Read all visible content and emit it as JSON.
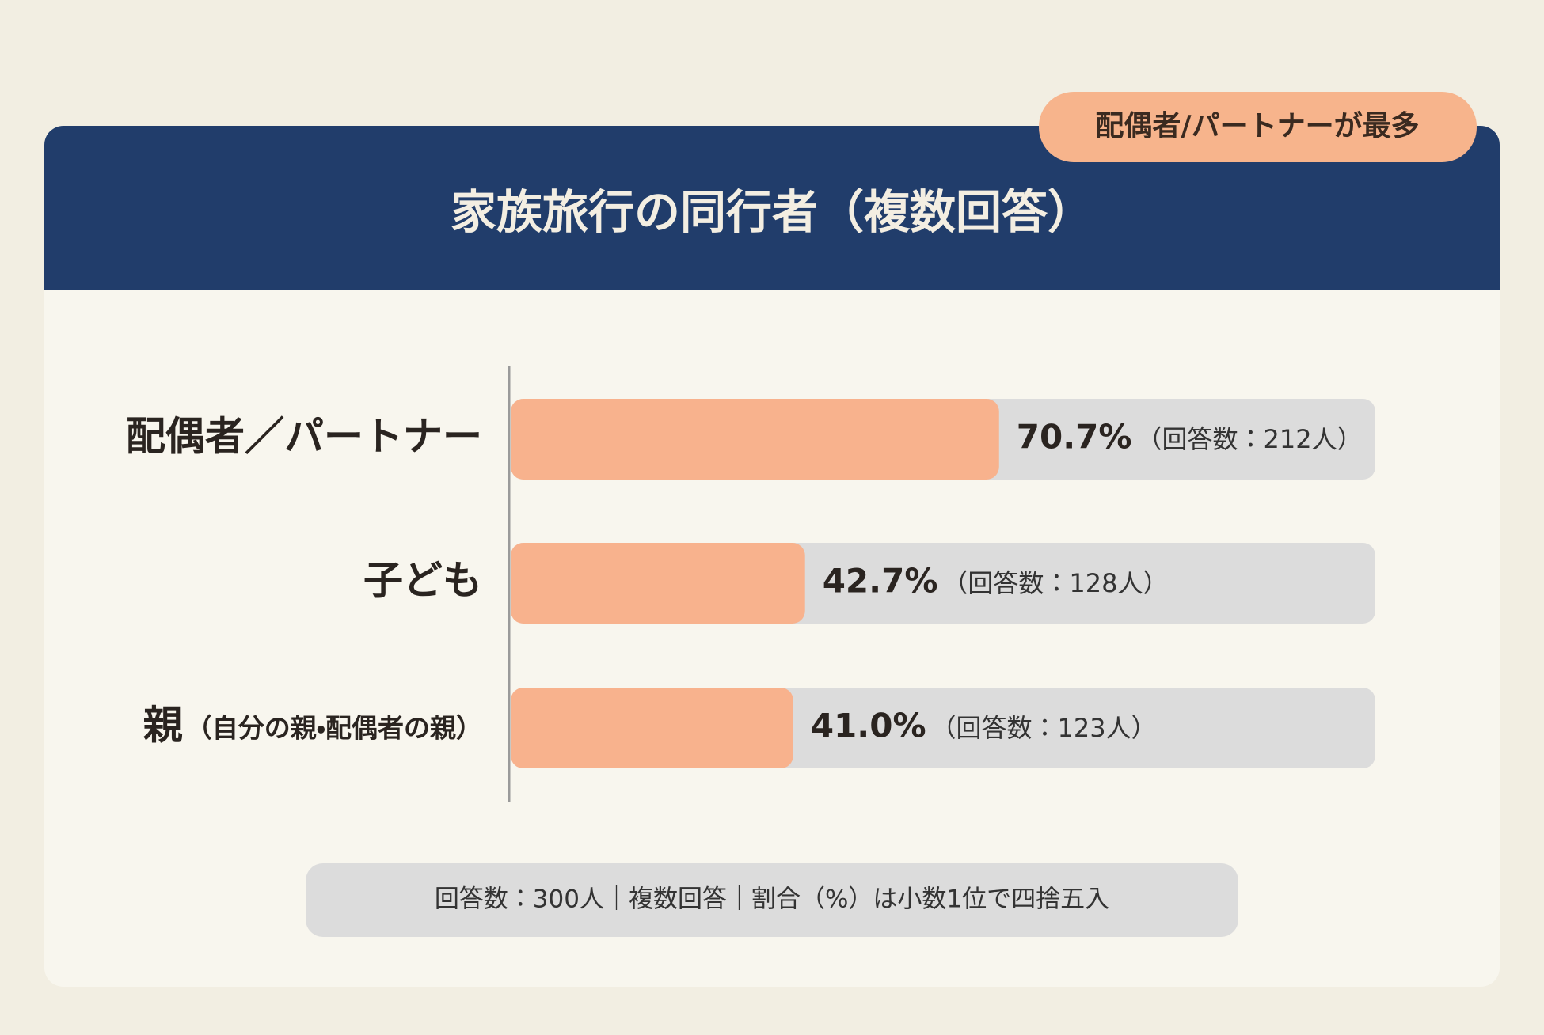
{
  "chart_data": {
    "type": "bar",
    "badge": "配偶者/パートナーが最多",
    "title": "家族旅行の同行者（複数回答）",
    "categories": [
      "配偶者／パートナー",
      "子ども",
      "親"
    ],
    "category_subtitles": [
      null,
      null,
      "（自分の親・配偶者の親）"
    ],
    "values": [
      70.7,
      42.7,
      41.0
    ],
    "value_labels": [
      "70.7%",
      "42.7%",
      "41.0%"
    ],
    "count_labels": [
      "（回答数：212人）",
      "（回答数：128人）",
      "（回答数：123人）"
    ],
    "color": "#f8b28d",
    "track_color": "#dcdcdc",
    "xlim": [
      0,
      125
    ],
    "footnote": "回答数：300人｜複数回答｜割合（%）は小数1位で四捨五入"
  }
}
